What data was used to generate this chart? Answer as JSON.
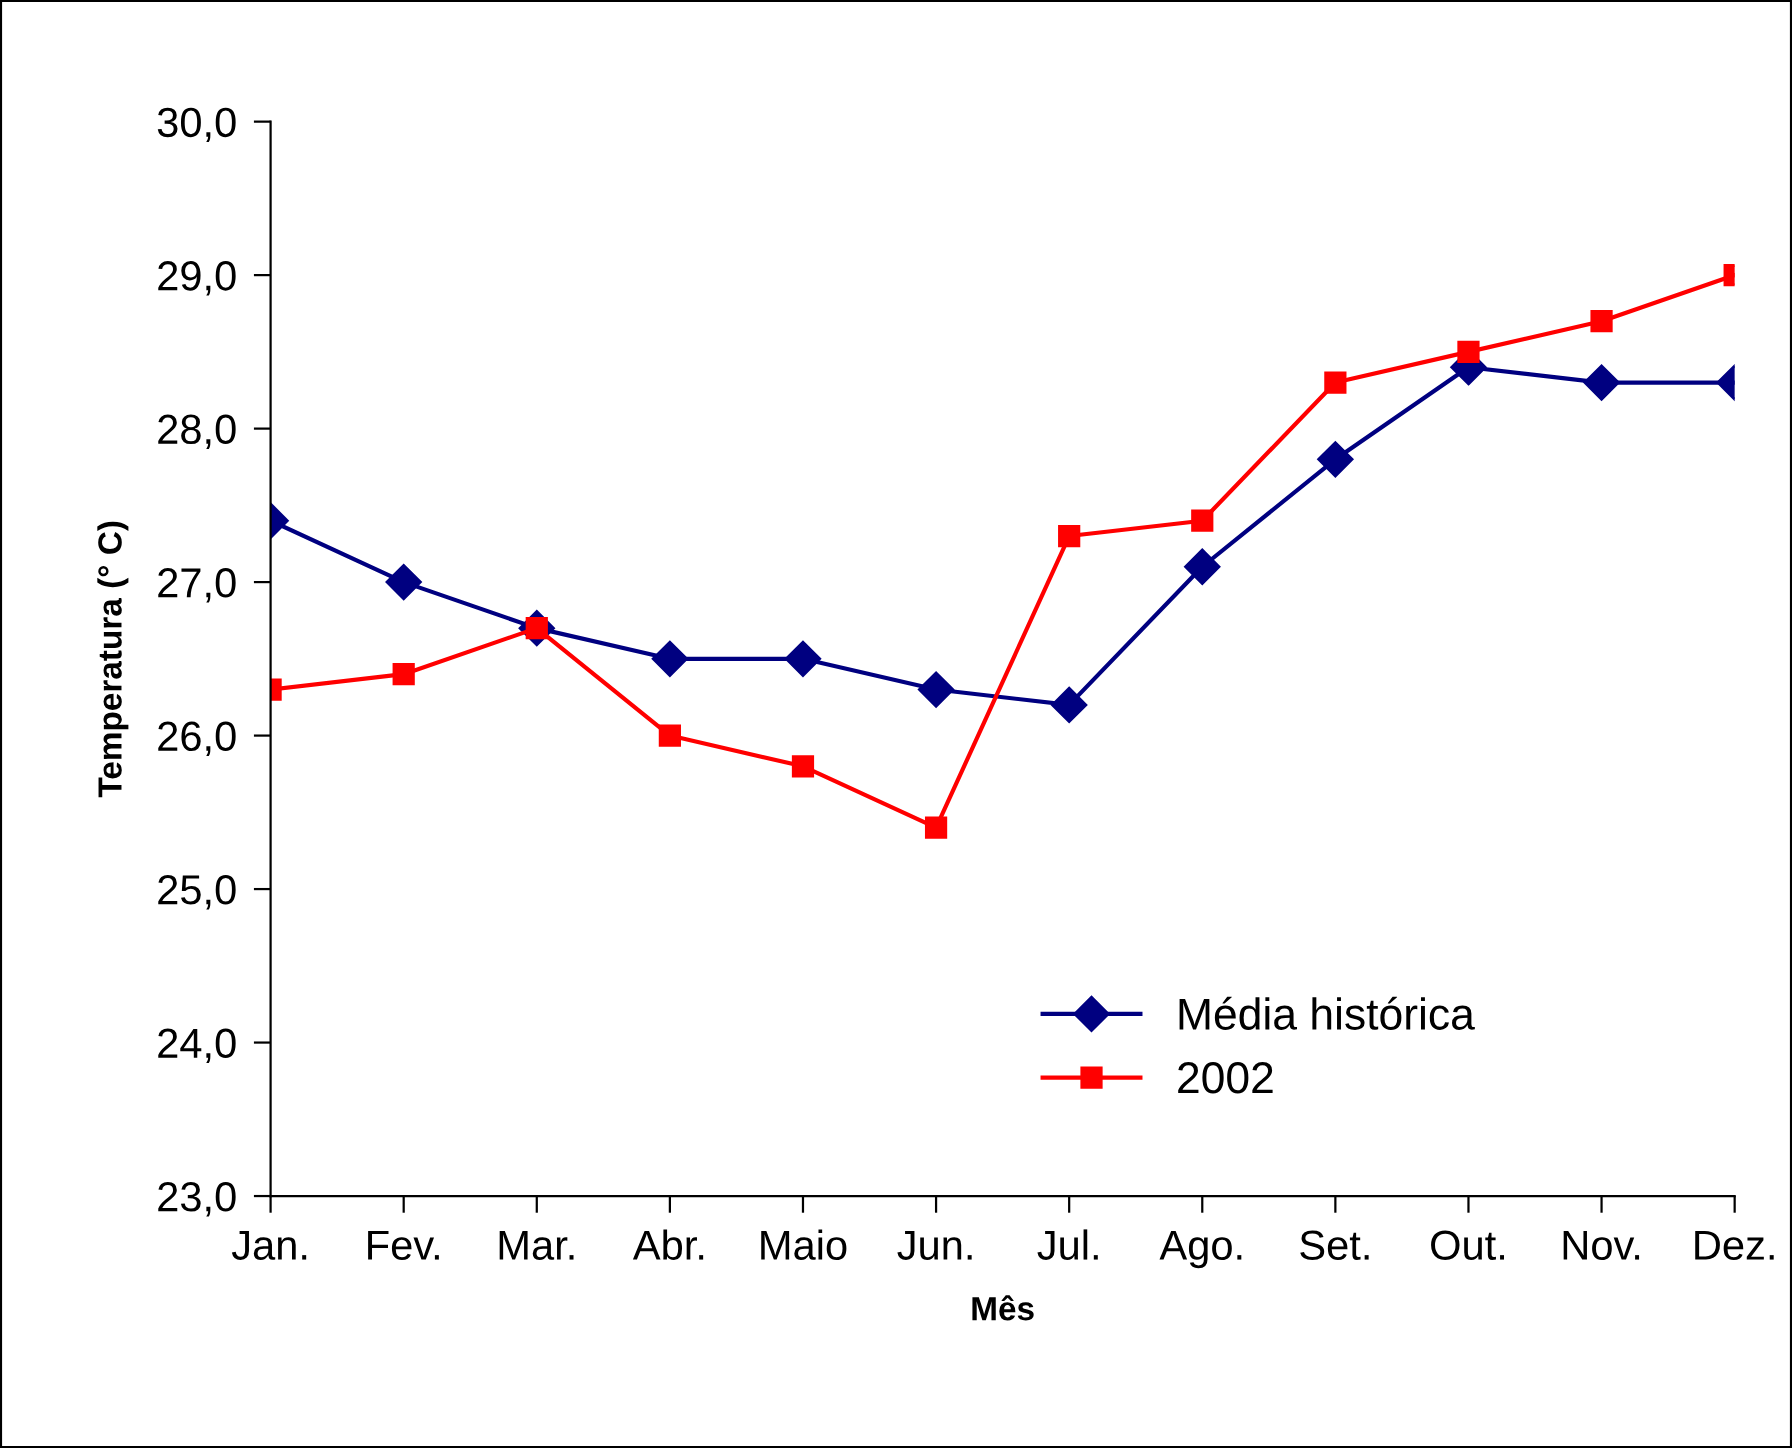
{
  "chart_data": {
    "type": "line",
    "xlabel": "Mês",
    "ylabel": "Temperatura (° C)",
    "categories": [
      "Jan.",
      "Fev.",
      "Mar.",
      "Abr.",
      "Maio",
      "Jun.",
      "Jul.",
      "Ago.",
      "Set.",
      "Out.",
      "Nov.",
      "Dez."
    ],
    "series": [
      {
        "name": "Média histórica",
        "color": "#000080",
        "marker": "diamond",
        "values": [
          27.4,
          27.0,
          26.7,
          26.5,
          26.5,
          26.3,
          26.2,
          27.1,
          27.8,
          28.4,
          28.3,
          28.3
        ]
      },
      {
        "name": "2002",
        "color": "#ff0000",
        "marker": "square",
        "values": [
          26.3,
          26.4,
          26.7,
          26.0,
          25.8,
          25.4,
          27.3,
          27.4,
          28.3,
          28.5,
          28.7,
          29.0
        ]
      }
    ],
    "ylim": [
      23,
      30
    ],
    "yticks": [
      {
        "value": 23,
        "label": "23,0"
      },
      {
        "value": 24,
        "label": "24,0"
      },
      {
        "value": 25,
        "label": "25,0"
      },
      {
        "value": 26,
        "label": "26,0"
      },
      {
        "value": 27,
        "label": "27,0"
      },
      {
        "value": 28,
        "label": "28,0"
      },
      {
        "value": 29,
        "label": "29,0"
      },
      {
        "value": 30,
        "label": "30,0"
      }
    ],
    "grid": false,
    "legend": "bottom right",
    "line_style": "solid"
  }
}
